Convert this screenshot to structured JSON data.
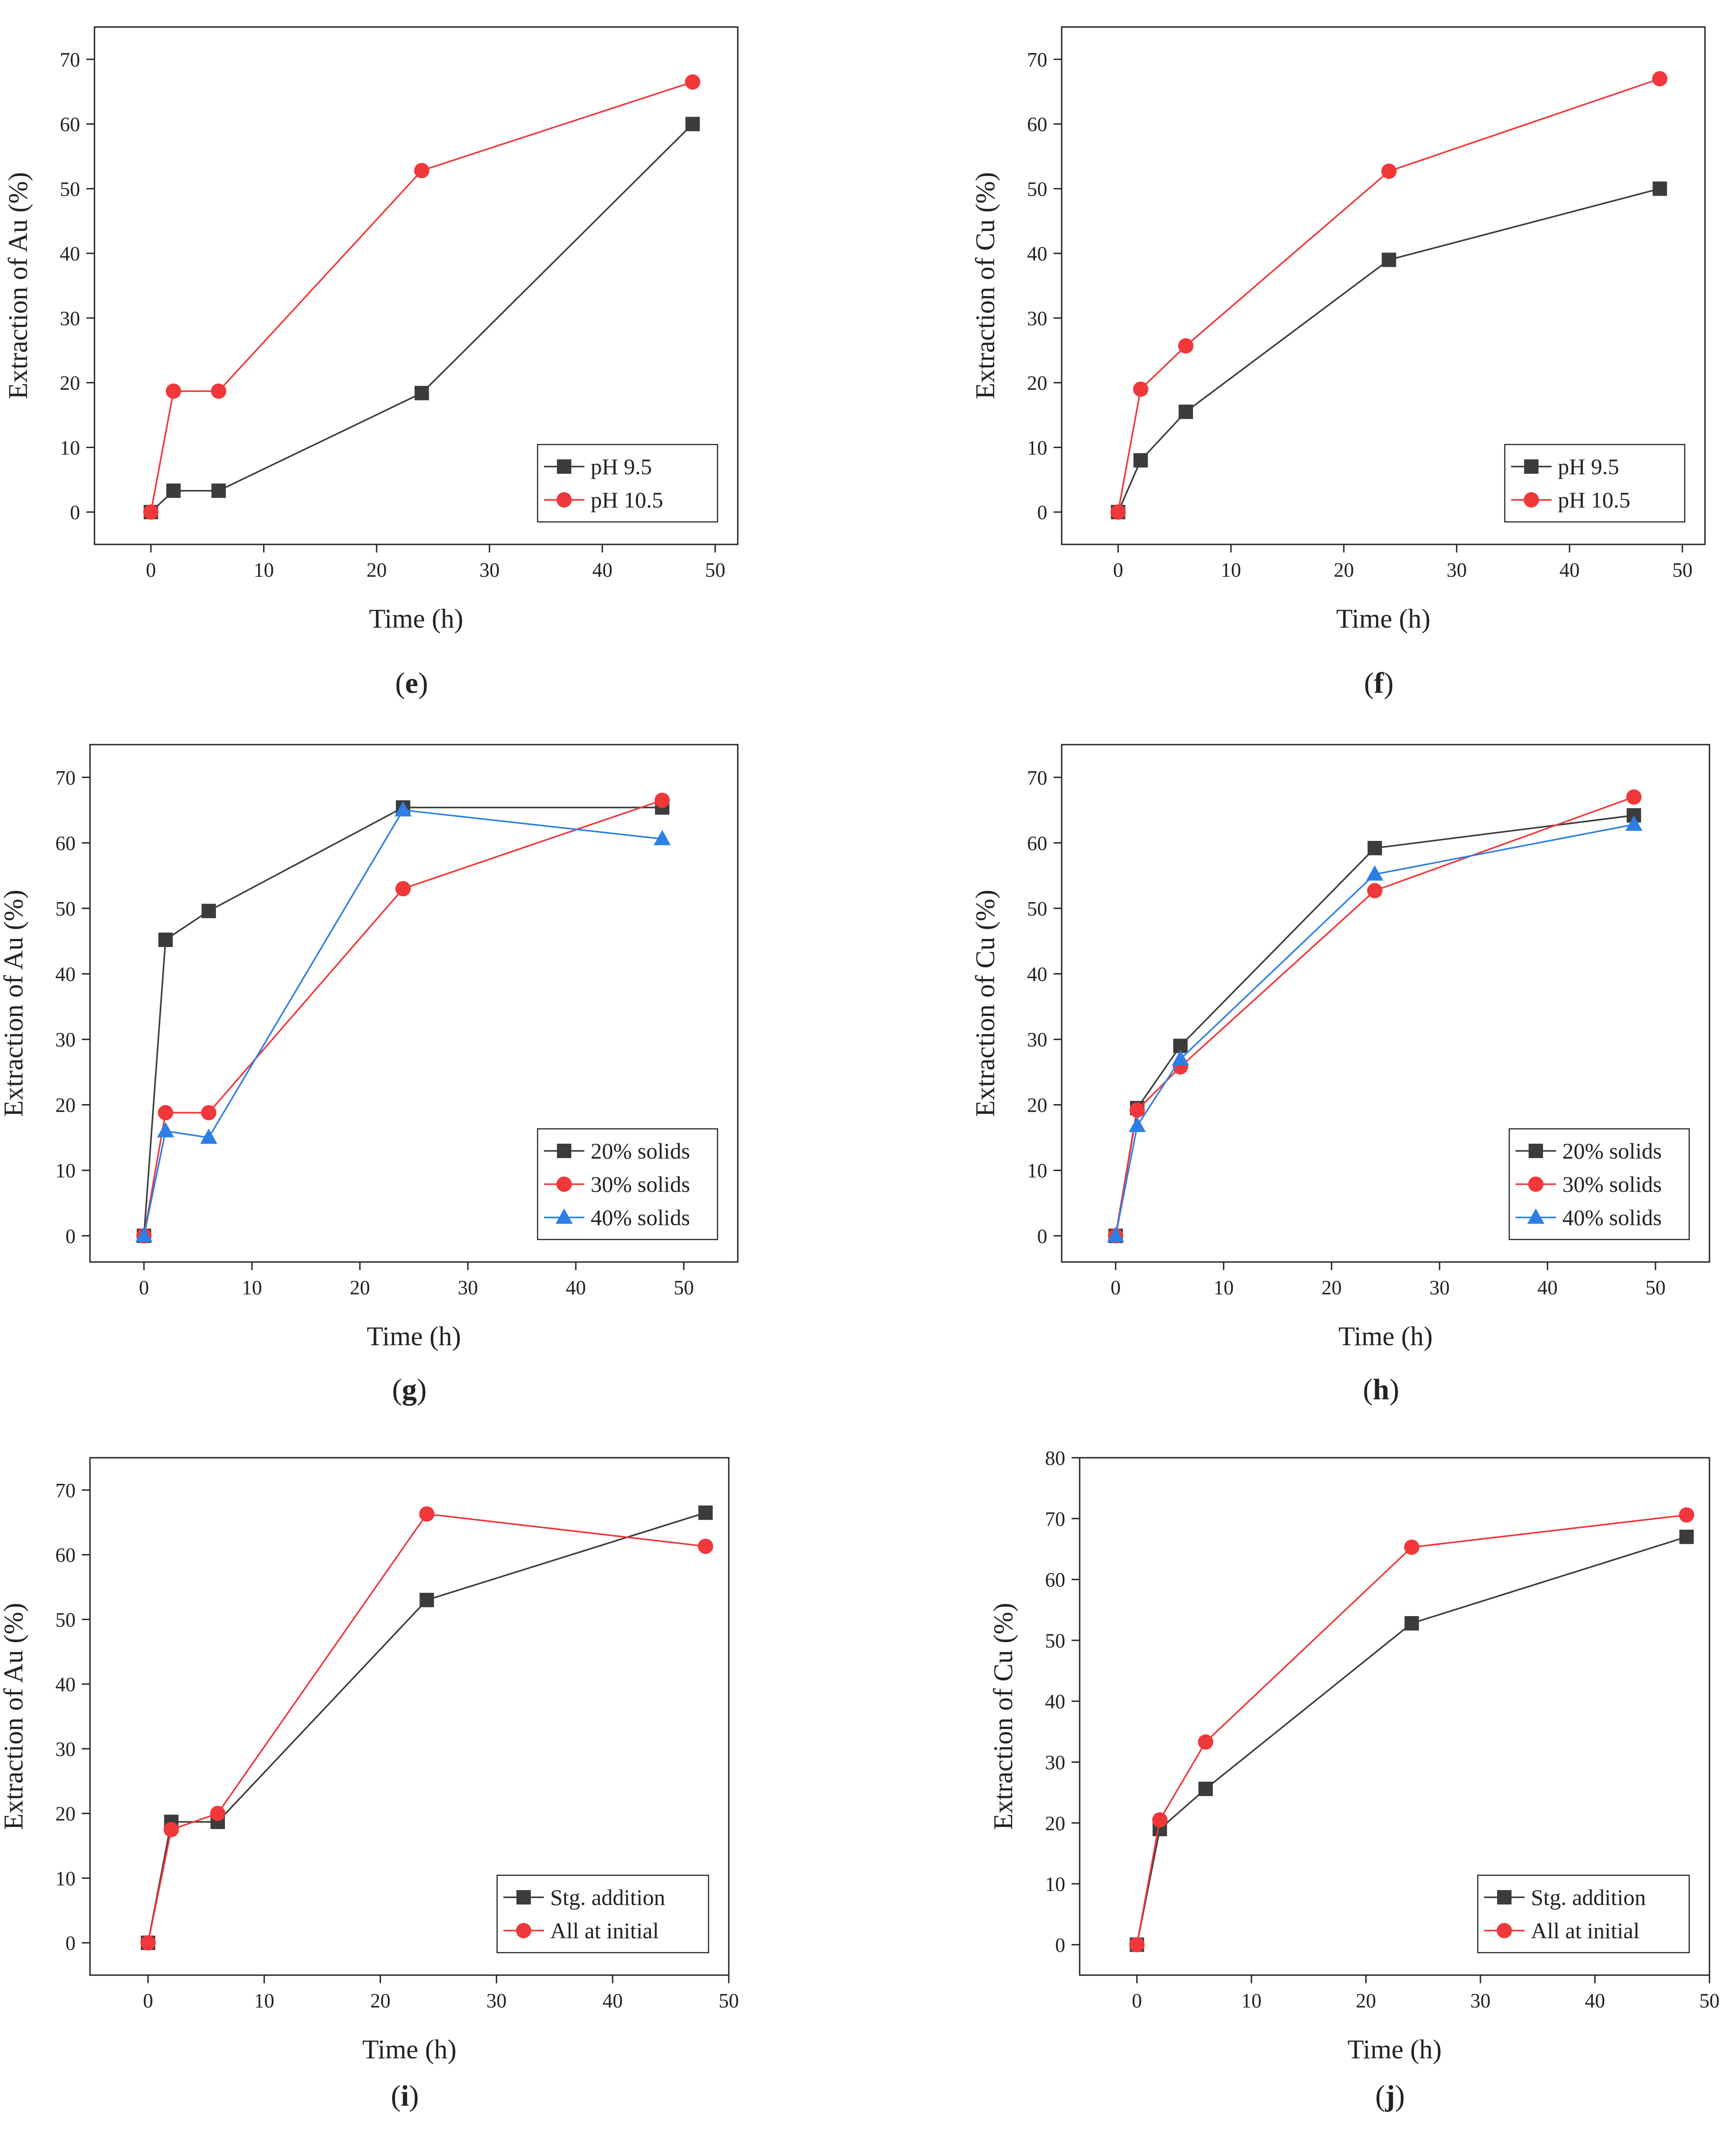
{
  "colors": {
    "black": "#3c3c3c",
    "red": "#f0373a",
    "blue": "#2d7fe6",
    "axis": "#222222"
  },
  "chart_data": [
    {
      "id": "e",
      "type": "line",
      "caption_letter": "e",
      "xlabel": "Time (h)",
      "ylabel": "Extraction of Au (%)",
      "xlim": [
        -5,
        52
      ],
      "ylim": [
        -5,
        75
      ],
      "xticks": [
        0,
        10,
        20,
        30,
        40,
        50
      ],
      "yticks": [
        0,
        10,
        20,
        30,
        40,
        50,
        60,
        70
      ],
      "x": [
        0,
        2,
        6,
        24,
        48
      ],
      "series": [
        {
          "name": "pH 9.5",
          "marker": "square",
          "color": "#3c3c3c",
          "values": [
            0,
            3.3,
            3.3,
            18.4,
            60
          ]
        },
        {
          "name": "pH 10.5",
          "marker": "circle",
          "color": "#f0373a",
          "values": [
            0,
            18.7,
            18.7,
            52.8,
            66.5
          ]
        }
      ]
    },
    {
      "id": "f",
      "type": "line",
      "caption_letter": "f",
      "xlabel": "Time (h)",
      "ylabel": "Extraction of Cu (%)",
      "xlim": [
        -5,
        52
      ],
      "ylim": [
        -5,
        75
      ],
      "xticks": [
        0,
        10,
        20,
        30,
        40,
        50
      ],
      "yticks": [
        0,
        10,
        20,
        30,
        40,
        50,
        60,
        70
      ],
      "x": [
        0,
        2,
        6,
        24,
        48
      ],
      "series": [
        {
          "name": "pH 9.5",
          "marker": "square",
          "color": "#3c3c3c",
          "values": [
            0,
            8,
            15.5,
            39,
            50
          ]
        },
        {
          "name": "pH 10.5",
          "marker": "circle",
          "color": "#f0373a",
          "values": [
            0,
            19,
            25.7,
            52.7,
            67
          ]
        }
      ]
    },
    {
      "id": "g",
      "type": "line",
      "caption_letter": "g",
      "xlabel": "Time (h)",
      "ylabel": "Extraction of Au (%)",
      "xlim": [
        -5,
        55
      ],
      "ylim": [
        -4,
        75
      ],
      "xticks": [
        0,
        10,
        20,
        30,
        40,
        50
      ],
      "yticks": [
        0,
        10,
        20,
        30,
        40,
        50,
        60,
        70
      ],
      "x": [
        0,
        2,
        6,
        24,
        48
      ],
      "series": [
        {
          "name": "20% solids",
          "marker": "square",
          "color": "#3c3c3c",
          "values": [
            0,
            45.2,
            49.6,
            65.4,
            65.4
          ]
        },
        {
          "name": "30% solids",
          "marker": "circle",
          "color": "#f0373a",
          "values": [
            0,
            18.8,
            18.8,
            53,
            66.5
          ]
        },
        {
          "name": "40% solids",
          "marker": "triangle",
          "color": "#2d7fe6",
          "values": [
            0,
            16,
            15,
            65,
            60.6
          ]
        }
      ]
    },
    {
      "id": "h",
      "type": "line",
      "caption_letter": "h",
      "xlabel": "Time (h)",
      "ylabel": "Extraction of Cu (%)",
      "xlim": [
        -5,
        55
      ],
      "ylim": [
        -4,
        75
      ],
      "xticks": [
        0,
        10,
        20,
        30,
        40,
        50
      ],
      "yticks": [
        0,
        10,
        20,
        30,
        40,
        50,
        60,
        70
      ],
      "x": [
        0,
        2,
        6,
        24,
        48
      ],
      "series": [
        {
          "name": "20% solids",
          "marker": "square",
          "color": "#3c3c3c",
          "values": [
            0,
            19.5,
            29,
            59.2,
            64.2
          ]
        },
        {
          "name": "30% solids",
          "marker": "circle",
          "color": "#f0373a",
          "values": [
            0,
            19.2,
            25.8,
            52.7,
            67
          ]
        },
        {
          "name": "40% solids",
          "marker": "triangle",
          "color": "#2d7fe6",
          "values": [
            0,
            16.8,
            27,
            55.2,
            62.8
          ]
        }
      ]
    },
    {
      "id": "i",
      "type": "line",
      "caption_letter": "i",
      "xlabel": "Time (h)",
      "ylabel": "Extraction of Au (%)",
      "xlim": [
        -5,
        50
      ],
      "ylim": [
        -5,
        75
      ],
      "xticks": [
        0,
        10,
        20,
        30,
        40,
        50
      ],
      "yticks": [
        0,
        10,
        20,
        30,
        40,
        50,
        60,
        70
      ],
      "x": [
        0,
        2,
        6,
        24,
        48
      ],
      "series": [
        {
          "name": "Stg. addition",
          "marker": "square",
          "color": "#3c3c3c",
          "values": [
            0,
            18.7,
            18.7,
            53,
            66.5
          ]
        },
        {
          "name": "All at initial",
          "marker": "circle",
          "color": "#f0373a",
          "values": [
            0,
            17.5,
            20,
            66.3,
            61.3
          ]
        }
      ]
    },
    {
      "id": "j",
      "type": "line",
      "caption_letter": "j",
      "xlabel": "Time (h)",
      "ylabel": "Extraction of Cu (%)",
      "xlim": [
        -5,
        50
      ],
      "ylim": [
        -5,
        80
      ],
      "xticks": [
        0,
        10,
        20,
        30,
        40,
        50
      ],
      "yticks": [
        0,
        10,
        20,
        30,
        40,
        50,
        60,
        70,
        80
      ],
      "x": [
        0,
        2,
        6,
        24,
        48
      ],
      "series": [
        {
          "name": "Stg. addition",
          "marker": "square",
          "color": "#3c3c3c",
          "values": [
            0,
            19,
            25.6,
            52.8,
            67
          ]
        },
        {
          "name": "All at initial",
          "marker": "circle",
          "color": "#f0373a",
          "values": [
            0,
            20.5,
            33.3,
            65.3,
            70.6
          ]
        }
      ]
    }
  ]
}
